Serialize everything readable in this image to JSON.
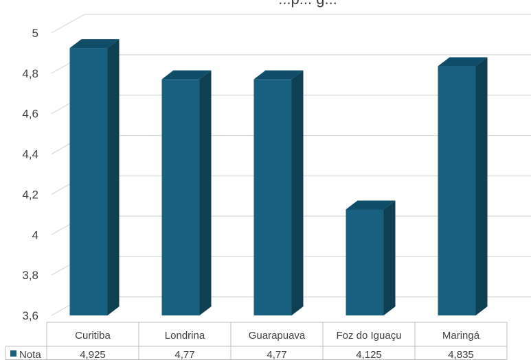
{
  "chart_data": {
    "type": "bar",
    "title": "...p... g...",
    "categories": [
      "Curitiba",
      "Londrina",
      "Guarapuava",
      "Foz do Iguaçu",
      "Maringá"
    ],
    "series": [
      {
        "name": "Nota",
        "values": [
          4.925,
          4.77,
          4.77,
          4.125,
          4.835
        ],
        "value_labels": [
          "4,925",
          "4,77",
          "4,77",
          "4,125",
          "4,835"
        ],
        "color": "#17607f"
      }
    ],
    "y_ticks": [
      "3,6",
      "3,8",
      "4",
      "4,2",
      "4,4",
      "4,6",
      "4,8",
      "5"
    ],
    "ylim": [
      3.6,
      5
    ],
    "grid": true,
    "legend": "data-table",
    "data_table": true,
    "colors": {
      "front": "#17607f",
      "side": "#0e3f52",
      "top": "#0f4d68",
      "grid": "#d9d9d9",
      "text": "#404040"
    }
  }
}
